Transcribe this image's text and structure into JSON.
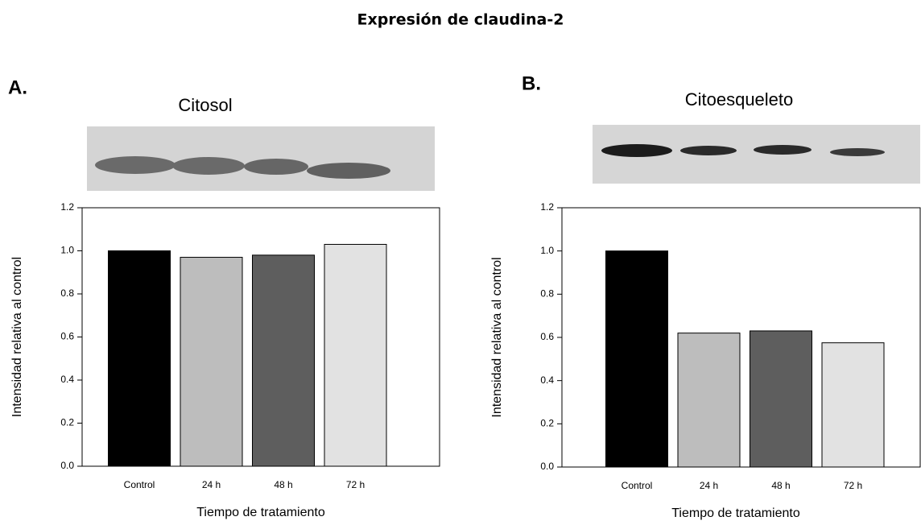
{
  "title": "Expresión de  claudina-2",
  "chart_data": [
    {
      "type": "bar",
      "panel_label": "A.",
      "title": "Citosol",
      "categories": [
        "Control",
        "24 h",
        "48 h",
        "72 h"
      ],
      "values": [
        1.0,
        0.97,
        0.98,
        1.03
      ],
      "colors": [
        "#000000",
        "#bdbdbd",
        "#5e5e5e",
        "#e2e2e2"
      ],
      "x_label": "Tiempo de tratamiento",
      "y_label": "Intensidad relativa al control",
      "ylim": [
        0,
        1.2
      ],
      "yticks": [
        {
          "value": 0,
          "label": "0.0"
        },
        {
          "value": 0.2,
          "label": "0.2"
        },
        {
          "value": 0.4,
          "label": "0.4"
        },
        {
          "value": 0.6,
          "label": "0.6"
        },
        {
          "value": 0.8,
          "label": "0.8"
        },
        {
          "value": 1.0,
          "label": "1.0"
        },
        {
          "value": 1.2,
          "label": "1.2"
        }
      ]
    },
    {
      "type": "bar",
      "panel_label": "B.",
      "title": "Citoesqueleto",
      "categories": [
        "Control",
        "24 h",
        "48 h",
        "72 h"
      ],
      "values": [
        1.0,
        0.62,
        0.63,
        0.575
      ],
      "colors": [
        "#000000",
        "#bdbdbd",
        "#5e5e5e",
        "#e2e2e2"
      ],
      "x_label": "Tiempo de tratamiento",
      "y_label": "Intensidad relativa al control",
      "ylim": [
        0,
        1.2
      ],
      "yticks": [
        {
          "value": 0,
          "label": "0.0"
        },
        {
          "value": 0.2,
          "label": "0.2"
        },
        {
          "value": 0.4,
          "label": "0.4"
        },
        {
          "value": 0.6,
          "label": "0.6"
        },
        {
          "value": 0.8,
          "label": "0.8"
        },
        {
          "value": 1.0,
          "label": "1.0"
        },
        {
          "value": 1.2,
          "label": "1.2"
        }
      ]
    }
  ]
}
